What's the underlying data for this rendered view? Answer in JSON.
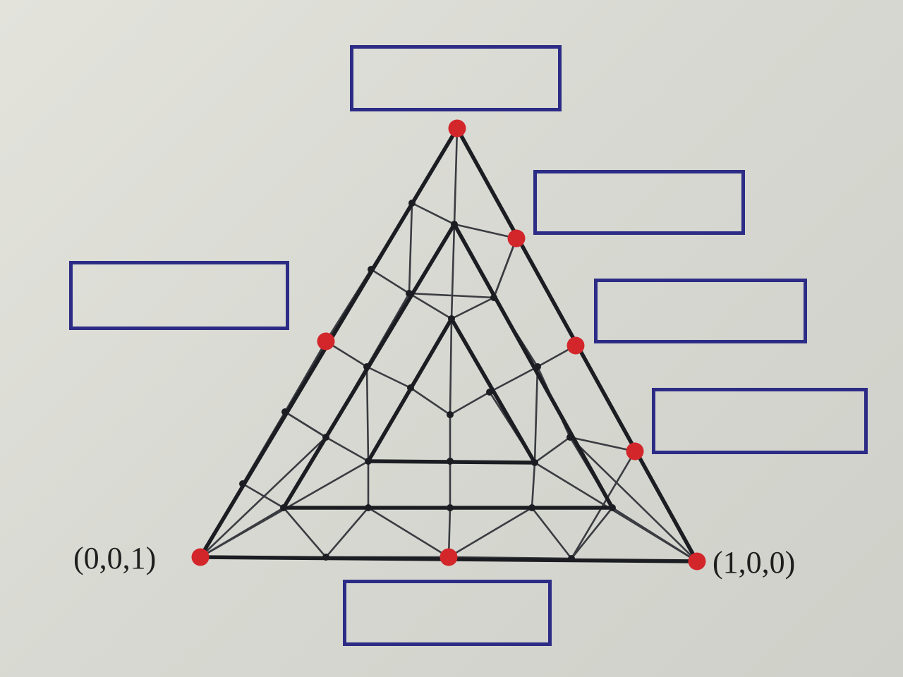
{
  "diagram": {
    "vertex_labels": {
      "bottom_left": "(0,0,1)",
      "bottom_right": "(1,0,0)"
    },
    "answer_boxes": [
      {
        "id": "top",
        "content": ""
      },
      {
        "id": "upper-right",
        "content": ""
      },
      {
        "id": "left",
        "content": ""
      },
      {
        "id": "right-middle",
        "content": ""
      },
      {
        "id": "right-lower",
        "content": ""
      },
      {
        "id": "bottom",
        "content": ""
      }
    ],
    "colors": {
      "edge": "#1b1d22",
      "thin_line": "#3a3c42",
      "node": "#1b1d22",
      "highlight_node": "#d3262b",
      "box_border": "#2c2c86",
      "paper": "#dcdcd5"
    }
  }
}
